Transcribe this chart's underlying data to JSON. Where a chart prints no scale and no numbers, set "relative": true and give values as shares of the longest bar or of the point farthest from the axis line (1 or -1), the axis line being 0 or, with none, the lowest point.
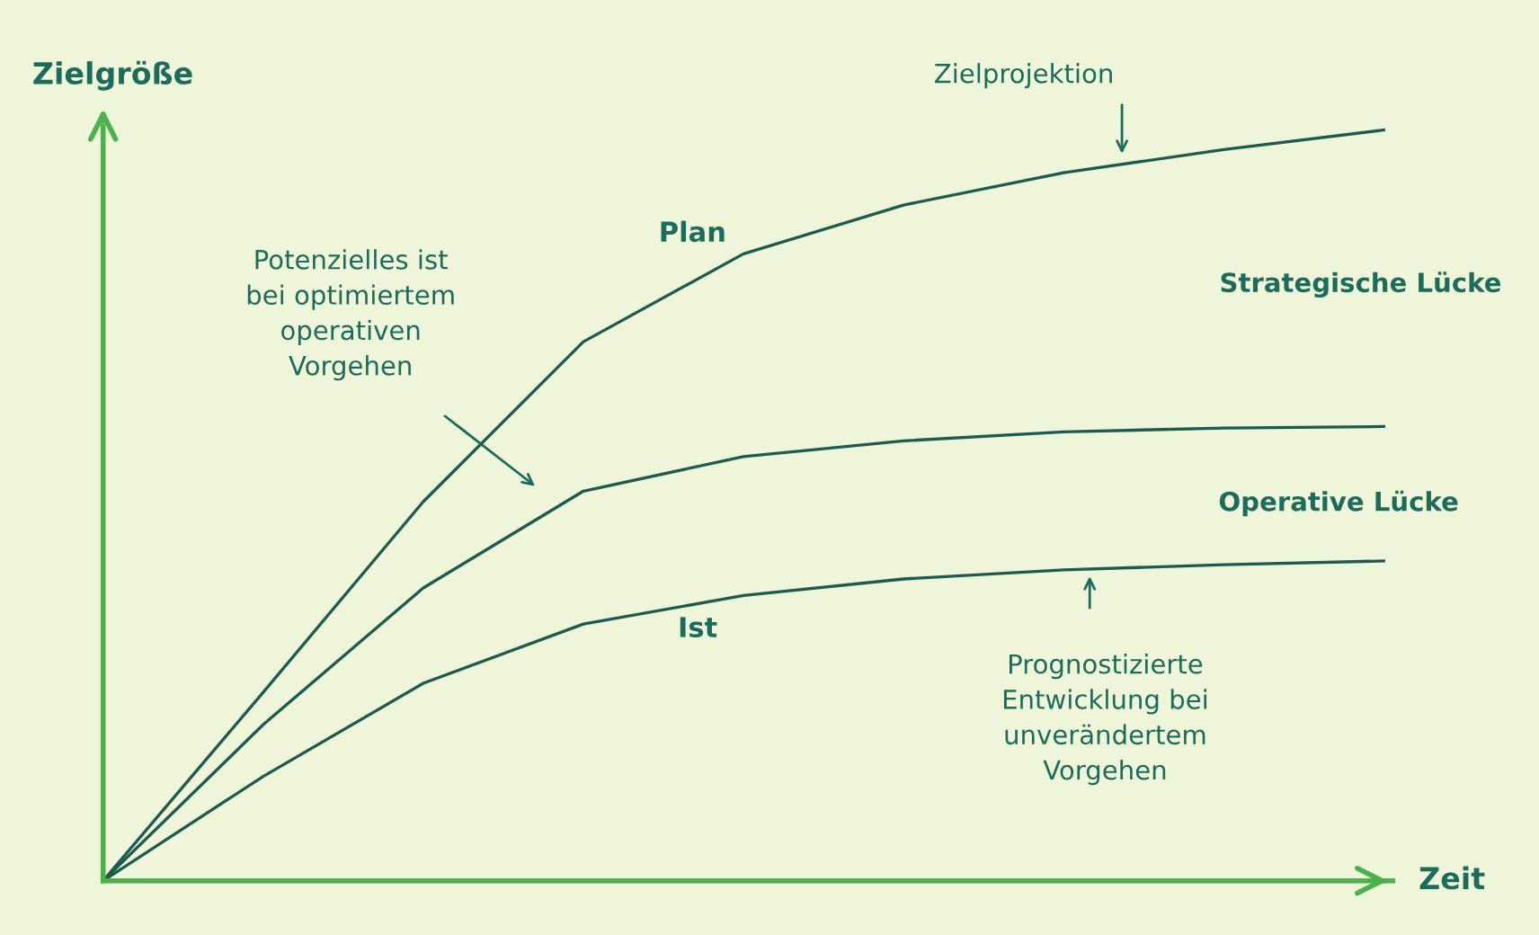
{
  "chart_data": {
    "type": "line",
    "relative": true,
    "xlabel": "Zeit",
    "ylabel": "Zielgröße",
    "categories": [
      null,
      null,
      null,
      null,
      null,
      null,
      null,
      null,
      null
    ],
    "series": [
      {
        "name": "Plan",
        "color": "#1f5a50",
        "values": [
          0,
          0.251,
          0.505,
          0.718,
          0.835,
          0.9,
          0.943,
          0.974,
          1
        ]
      },
      {
        "color": "#1f5a50",
        "values": [
          0,
          0.208,
          0.39,
          0.519,
          0.565,
          0.586,
          0.598,
          0.603,
          0.605
        ]
      },
      {
        "name": "Ist",
        "color": "#1f5a50",
        "values": [
          0,
          0.139,
          0.263,
          0.342,
          0.38,
          0.402,
          0.414,
          0.421,
          0.426
        ]
      }
    ],
    "annotations": [
      "Zielprojektion",
      "Potenzielles ist\nbei optimiertem\noperativen\nVorgehen",
      "Strategische Lücke",
      "Operative Lücke",
      "Prognostizierte\nEntwicklung bei\nunverändertem\nVorgehen"
    ],
    "grid": false,
    "legend": false,
    "marker": "none",
    "line_style": "solid"
  }
}
